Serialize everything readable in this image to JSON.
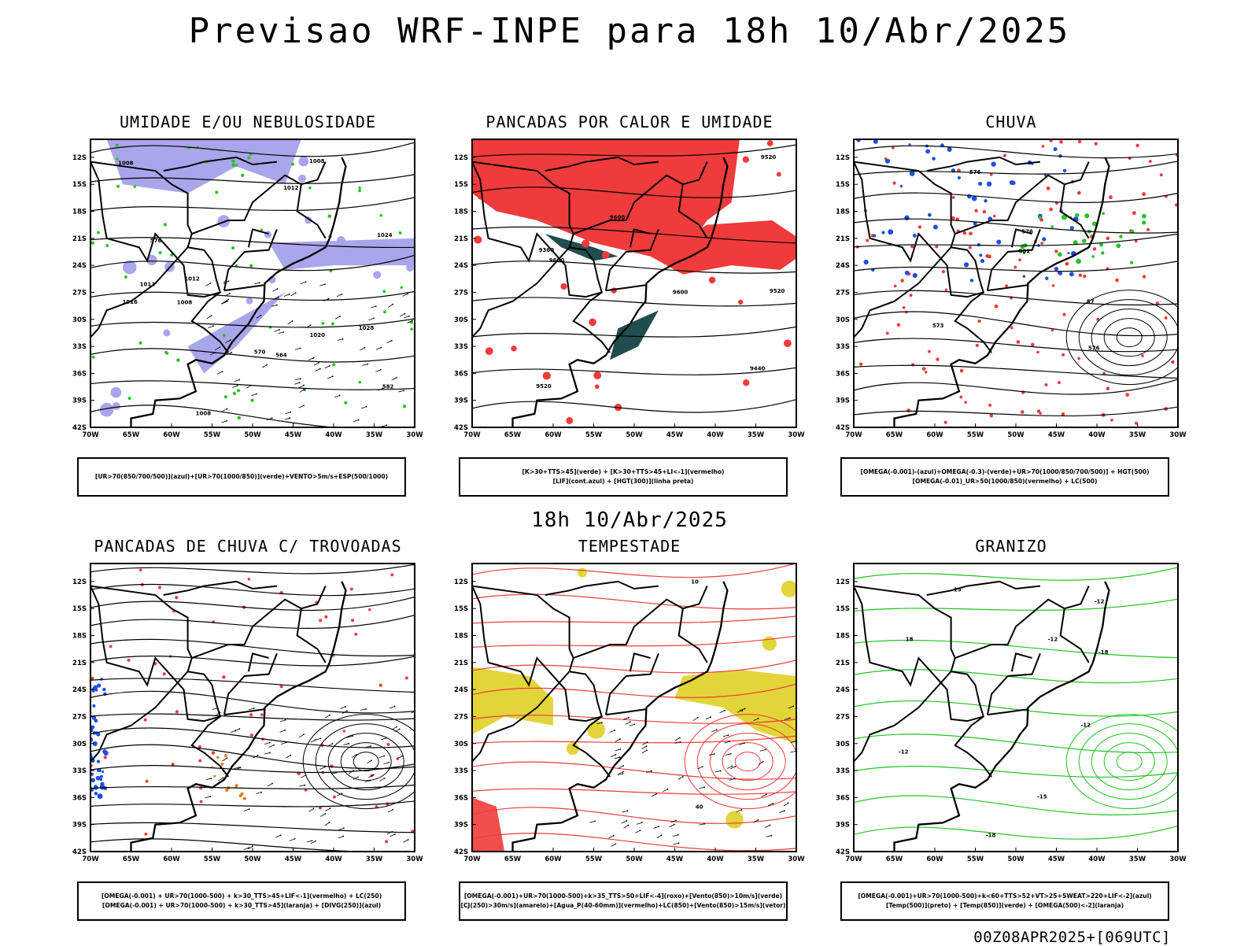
{
  "header": {
    "title": "Previsao WRF-INPE  para 18h 10/Abr/2025"
  },
  "mid_date": "18h 10/Abr/2025",
  "footer": "00Z08APR2025+[069UTC]",
  "axes": {
    "lat_labels": [
      "12S",
      "15S",
      "18S",
      "21S",
      "24S",
      "27S",
      "30S",
      "33S",
      "36S",
      "39S",
      "42S"
    ],
    "lon_labels": [
      "70W",
      "65W",
      "60W",
      "55W",
      "50W",
      "45W",
      "40W",
      "35W",
      "30W"
    ]
  },
  "panels": [
    {
      "id": "umidade",
      "title": "UMIDADE E/OU NEBULOSIDADE",
      "legend": [
        "[UR>70(850/700/500)](azul)+[UR>70(1000/850)](verde)+VENTO>5m/s+ESP(500/1000)"
      ],
      "contour_labels": [
        "1008",
        "1008",
        "1008",
        "1012",
        "1012",
        "1012",
        "1016",
        "1020",
        "1024",
        "1028",
        "1008",
        "576",
        "570",
        "564",
        "582"
      ],
      "colors": {
        "primary": "#a9a6ec",
        "secondary": "#22c322",
        "accent": "#ef3b3b"
      }
    },
    {
      "id": "pancadas_calor",
      "title": "PANCADAS POR CALOR E UMIDADE",
      "legend": [
        "[K>30+TTS>45](verde) + [K>30+TTS>45+LI<-1](vermelho)",
        "[LIF](cont.azul) + [HGT(300)](linha preta)"
      ],
      "contour_labels": [
        "9520",
        "9600",
        "9600",
        "9520",
        "9440",
        "9520",
        "9360",
        "9600"
      ],
      "colors": {
        "primary": "#ef3b3b",
        "secondary": "#214d4d",
        "accent": "#2e50e8"
      }
    },
    {
      "id": "chuva",
      "title": "CHUVA",
      "legend": [
        "[OMEGA(-0.001)-(azul)+OMEGA(-0.3)-(verde)+UR>70(1000/850/700/500)] + HGT(500)",
        "[OMEGA(-0.01)_UR>50(1000/850)(vermelho) + LC(500)"
      ],
      "contour_labels": [
        "582",
        "576",
        "576",
        "573",
        "576",
        "57"
      ],
      "colors": {
        "primary": "#ef3b3b",
        "secondary": "#1f4fe0",
        "accent": "#22c322"
      }
    },
    {
      "id": "pancadas_trovoadas",
      "title": "PANCADAS DE CHUVA C/ TROVOADAS",
      "legend": [
        "[OMEGA(-0.001) + UR>70(1000-500) + k>30_TTS>45+LIF<-1](vermelho) + LC(250)",
        "[OMEGA(-0.001) + UR>70(1000-500) + k>30_TTS>45](laranja) + [DIVG(250)](azul)"
      ],
      "contour_labels": [],
      "colors": {
        "primary": "#ef3b3b",
        "secondary": "#1f4fe0",
        "accent": "#e07a1f"
      }
    },
    {
      "id": "tempestade",
      "title": "TEMPESTADE",
      "legend": [
        "[OMEGA(-0.001)+UR>70(1000-500)+k>35_TTS>50+LIF<-4](roxo)+[Vento(850)>10m/s](verde)",
        "[CJ(250)>30m/s](amarelo)+[Agua_P(40-60mm)](vermelho)+LC(850)+[Vento(850)>15m/s](vetor)"
      ],
      "contour_labels": [
        "10",
        "40"
      ],
      "colors": {
        "primary": "#ef3b3b",
        "secondary": "#e2d53a",
        "accent": "#8a2be2"
      }
    },
    {
      "id": "granizo",
      "title": "GRANIZO",
      "legend": [
        "[OMEGA(-0.001)+UR>70(1000-500)+k<60+TTS>52+VT>25+SWEAT>220+LIF<-2](azul)",
        "[Temp(500)](preto) + [Temp(850)](verde) + [OMEGA(500)<-2](laranja)"
      ],
      "contour_labels": [
        "-12",
        "-12",
        "-12",
        "-15",
        "-15",
        "-18",
        "-18",
        "-12",
        "18"
      ],
      "colors": {
        "primary": "#22c322",
        "secondary": "#000000",
        "accent": "#e07a1f"
      }
    }
  ]
}
